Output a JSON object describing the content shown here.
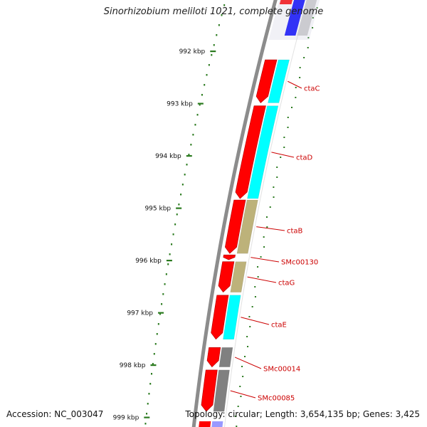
{
  "title": "Sinorhizobium meliloti 1021, complete genome",
  "footer": {
    "accession": "Accession: NC_003047",
    "topology": "Topology: circular; Length: 3,654,135 bp; Genes: 3,425"
  },
  "ruler": {
    "unit": "kbp",
    "ticks": [
      992,
      993,
      994,
      995,
      996,
      997,
      998,
      999
    ]
  },
  "colors": {
    "backbone": "#8c8c8c",
    "gene": "#ff0000",
    "cyan": "#00ffff",
    "tan": "#bdb27a",
    "gray": "#808080",
    "blue": "#0000ff",
    "lightgray": "#cccccc",
    "minor_tick": "#2a7a1e",
    "label": "#cc0000"
  },
  "genes": [
    {
      "name": "ctaC",
      "label": "ctaC",
      "start_kbp": 992.15,
      "end_kbp": 993.0,
      "inner_color": "cyan"
    },
    {
      "name": "ctaD",
      "label": "ctaD",
      "start_kbp": 993.03,
      "end_kbp": 994.83,
      "inner_color": "cyan"
    },
    {
      "name": "ctaB",
      "label": "ctaB",
      "start_kbp": 994.83,
      "end_kbp": 995.88,
      "inner_color": "tan"
    },
    {
      "name": "SMc00130",
      "label": "SMc00130",
      "start_kbp": 995.88,
      "end_kbp": 996.0,
      "inner_color": null
    },
    {
      "name": "ctaG",
      "label": "ctaG",
      "start_kbp": 996.01,
      "end_kbp": 996.62,
      "inner_color": "tan"
    },
    {
      "name": "ctaE",
      "label": "ctaE",
      "start_kbp": 996.65,
      "end_kbp": 997.52,
      "inner_color": "cyan"
    },
    {
      "name": "SMc00014",
      "label": "SMc00014",
      "start_kbp": 997.65,
      "end_kbp": 998.05,
      "inner_color": "gray"
    },
    {
      "name": "SMc00085",
      "label": "SMc00085",
      "start_kbp": 998.08,
      "end_kbp": 998.9,
      "inner_color": "gray"
    }
  ],
  "top_features": [
    {
      "name": "blue-feature",
      "color": "blue"
    },
    {
      "name": "lightgray-feature",
      "color": "lightgray"
    }
  ]
}
